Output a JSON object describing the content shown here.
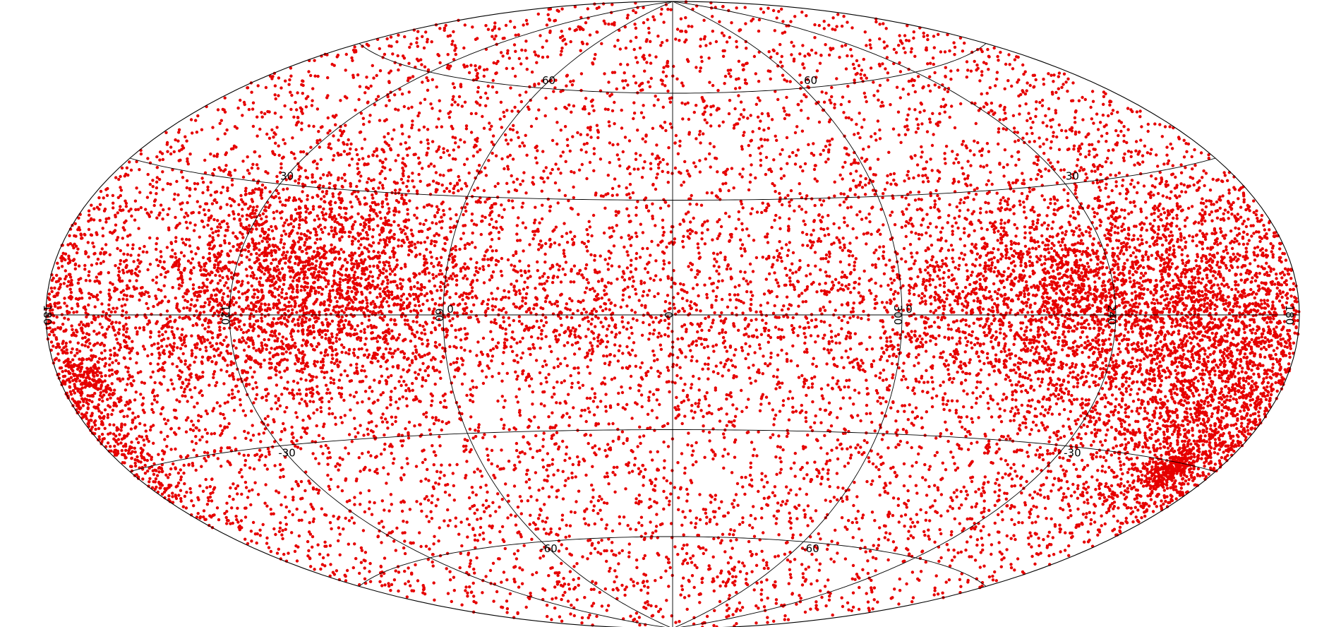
{
  "map": {
    "projection": "Hammer-Aitoff (galactic)",
    "point_color": "#e60000",
    "line_color": "#000000",
    "background": "#ffffff",
    "graticule": {
      "latitudes_deg": [
        -60,
        -30,
        0,
        30,
        60
      ],
      "longitudes_deg": [
        -120,
        -60,
        0,
        60,
        120
      ]
    },
    "latitude_labels": [
      {
        "text": "60",
        "lon": 60,
        "lat": 60
      },
      {
        "text": "60",
        "lon": -60,
        "lat": 60
      },
      {
        "text": "30",
        "lon": 120,
        "lat": 30
      },
      {
        "text": "30",
        "lon": -120,
        "lat": 30
      },
      {
        "text": "0",
        "lon": 60,
        "lat": 0
      },
      {
        "text": "0",
        "lon": -60,
        "lat": 0
      },
      {
        "text": "-30",
        "lon": 120,
        "lat": -30
      },
      {
        "text": "-30",
        "lon": -120,
        "lat": -30
      },
      {
        "text": "-60",
        "lon": 60,
        "lat": -60
      },
      {
        "text": "-60",
        "lon": -60,
        "lat": -60
      }
    ],
    "longitude_labels": [
      {
        "text": "0",
        "lon": 0
      },
      {
        "text": "60",
        "lon": 60
      },
      {
        "text": "300",
        "lon": -60
      },
      {
        "text": "120",
        "lon": 120
      },
      {
        "text": "240",
        "lon": -120
      },
      {
        "text": "180",
        "lon": 180
      },
      {
        "text": "180",
        "lon": -180
      }
    ],
    "point_distribution": {
      "total_points": 17000,
      "isotropic_fraction": 0.5,
      "disk_scale_height_deg": 9,
      "clusters": [
        {
          "lon": 100,
          "lat": 8,
          "sigma_deg": 18,
          "weight": 0.12
        },
        {
          "lon": -150,
          "lat": -5,
          "sigma_deg": 22,
          "weight": 0.16
        },
        {
          "lon": -170,
          "lat": -25,
          "sigma_deg": 12,
          "weight": 0.05
        },
        {
          "lon": -100,
          "lat": 5,
          "sigma_deg": 15,
          "weight": 0.05
        },
        {
          "lon": -163,
          "lat": -32,
          "sigma_deg": 3,
          "weight": 0.012
        },
        {
          "lon": 170,
          "lat": -12,
          "sigma_deg": 3,
          "weight": 0.008
        }
      ]
    }
  }
}
